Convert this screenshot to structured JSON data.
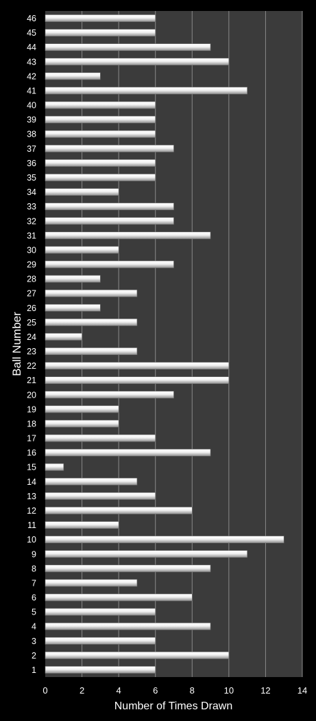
{
  "chart_data": {
    "type": "bar",
    "orientation": "horizontal",
    "xlabel": "Number of Times Drawn",
    "ylabel": "Ball Number",
    "xlim": [
      0,
      14
    ],
    "xticks": [
      "0",
      "2",
      "4",
      "6",
      "8",
      "10",
      "12",
      "14"
    ],
    "grid": "vertical",
    "colors": {
      "background": "#000000",
      "plot_area": "#3b3b3b",
      "gridline": "#8a8a8a",
      "bar_light": "#ffffff",
      "bar_dark": "#9a9a9a",
      "text": "#ffffff"
    },
    "categories": [
      "1",
      "2",
      "3",
      "4",
      "5",
      "6",
      "7",
      "8",
      "9",
      "10",
      "11",
      "12",
      "13",
      "14",
      "15",
      "16",
      "17",
      "18",
      "19",
      "20",
      "21",
      "22",
      "23",
      "24",
      "25",
      "26",
      "27",
      "28",
      "29",
      "30",
      "31",
      "32",
      "33",
      "34",
      "35",
      "36",
      "37",
      "38",
      "39",
      "40",
      "41",
      "42",
      "43",
      "44",
      "45",
      "46"
    ],
    "values": [
      6,
      10,
      6,
      9,
      6,
      8,
      5,
      9,
      11,
      13,
      4,
      8,
      6,
      5,
      1,
      9,
      6,
      4,
      4,
      7,
      10,
      10,
      5,
      2,
      5,
      3,
      5,
      3,
      7,
      4,
      9,
      7,
      7,
      4,
      6,
      6,
      7,
      6,
      6,
      6,
      11,
      3,
      10,
      9,
      6,
      6
    ]
  }
}
